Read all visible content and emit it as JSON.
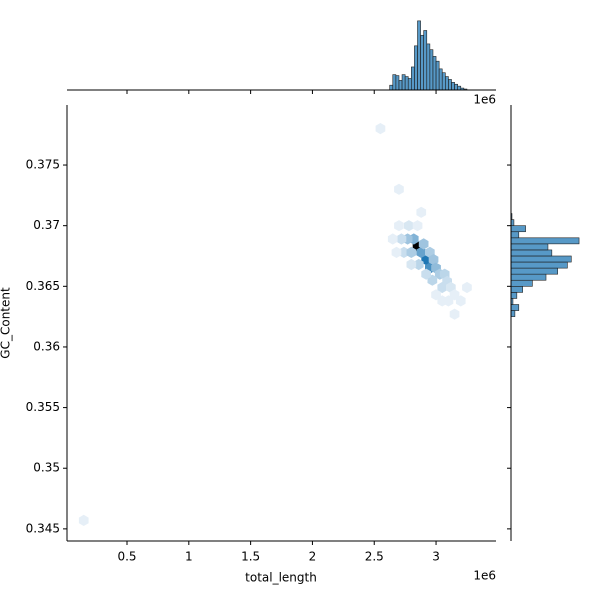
{
  "chart_data": {
    "type": "hexbin",
    "xlabel": "total_length",
    "ylabel": "GC_Content",
    "x_offset": "1e6",
    "xlim": [
      0.0146,
      3.485
    ],
    "ylim": [
      0.344,
      0.37995
    ],
    "xticks": [
      0.5,
      1.0,
      1.5,
      2.0,
      2.5,
      3.0
    ],
    "yticks": [
      0.345,
      0.35,
      0.355,
      0.36,
      0.365,
      0.37,
      0.375
    ],
    "cmap": [
      "#f4f8fc",
      "#1f77b4",
      "#000000"
    ],
    "hex": {
      "x": [
        2.85,
        2.92,
        2.95,
        2.88,
        2.82,
        2.77,
        2.72,
        2.74,
        2.8,
        2.9,
        2.95,
        2.98,
        3.0,
        3.03,
        3.07,
        3.09,
        3.05,
        2.97,
        2.92,
        2.86,
        2.8,
        2.7,
        2.78,
        2.85,
        2.68,
        2.65,
        3.12,
        3.15,
        3.2,
        3.1,
        3.05,
        2.7,
        2.55,
        0.15,
        3.15,
        3.0,
        2.88,
        3.25
      ],
      "y": [
        0.3683,
        0.3672,
        0.3665,
        0.3678,
        0.3689,
        0.3689,
        0.3689,
        0.3678,
        0.3678,
        0.3685,
        0.3678,
        0.3672,
        0.3665,
        0.366,
        0.366,
        0.3654,
        0.3649,
        0.3655,
        0.366,
        0.3668,
        0.3668,
        0.37,
        0.37,
        0.37,
        0.3678,
        0.3689,
        0.3649,
        0.3643,
        0.3638,
        0.3638,
        0.3638,
        0.373,
        0.378,
        0.3457,
        0.3627,
        0.3643,
        0.3711,
        0.3649
      ],
      "counts": [
        30,
        15,
        12,
        10,
        8,
        6,
        3,
        3,
        5,
        6,
        5,
        6,
        7,
        5,
        4,
        3,
        3,
        4,
        3,
        4,
        2,
        1,
        2,
        1,
        1,
        1,
        2,
        1,
        1,
        1,
        1,
        1,
        1,
        1,
        1,
        1,
        1,
        1
      ]
    },
    "color": "#1f77b4",
    "top_hist": {
      "bins": [
        2.625,
        2.65,
        2.675,
        2.7,
        2.725,
        2.75,
        2.775,
        2.8,
        2.825,
        2.85,
        2.875,
        2.9,
        2.925,
        2.95,
        2.975,
        3.0,
        3.025,
        3.05,
        3.075,
        3.1,
        3.125,
        3.15,
        3.175,
        3.2,
        3.225,
        3.25
      ],
      "counts": [
        5,
        16,
        15,
        10,
        16,
        14,
        12,
        24,
        46,
        72,
        57,
        62,
        48,
        42,
        35,
        30,
        22,
        18,
        14,
        11,
        8,
        6,
        4,
        2,
        1
      ],
      "lim": [
        0,
        75
      ]
    },
    "right_hist": {
      "bins": [
        0.3625,
        0.363,
        0.3635,
        0.364,
        0.3645,
        0.365,
        0.3655,
        0.366,
        0.3665,
        0.367,
        0.3675,
        0.368,
        0.3685,
        0.369,
        0.3695,
        0.37,
        0.3705,
        0.371
      ],
      "counts": [
        4,
        8,
        2,
        6,
        12,
        22,
        36,
        48,
        58,
        62,
        42,
        38,
        70,
        8,
        15,
        3,
        1
      ],
      "lim": [
        0,
        72
      ]
    }
  }
}
